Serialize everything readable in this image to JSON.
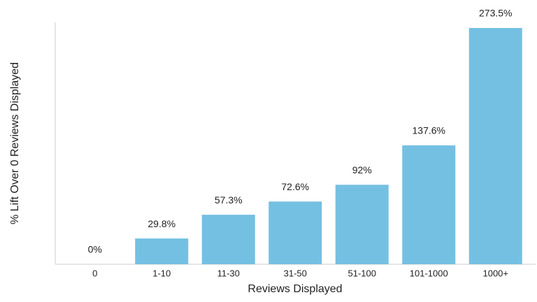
{
  "chart_data": {
    "type": "bar",
    "x_label": "Reviews Displayed",
    "y_label": "% Lift Over 0 Reviews Displayed",
    "categories": [
      "0",
      "1-10",
      "11-30",
      "31-50",
      "51-100",
      "101-1000",
      "1000+"
    ],
    "values": [
      0,
      29.8,
      57.3,
      72.6,
      92,
      137.6,
      273.5
    ],
    "value_labels": [
      "0%",
      "29.8%",
      "57.3%",
      "72.6%",
      "92%",
      "137.6%",
      "273.5%"
    ],
    "color": "#74c0e3",
    "ylim": [
      0,
      280
    ],
    "grid": false
  }
}
